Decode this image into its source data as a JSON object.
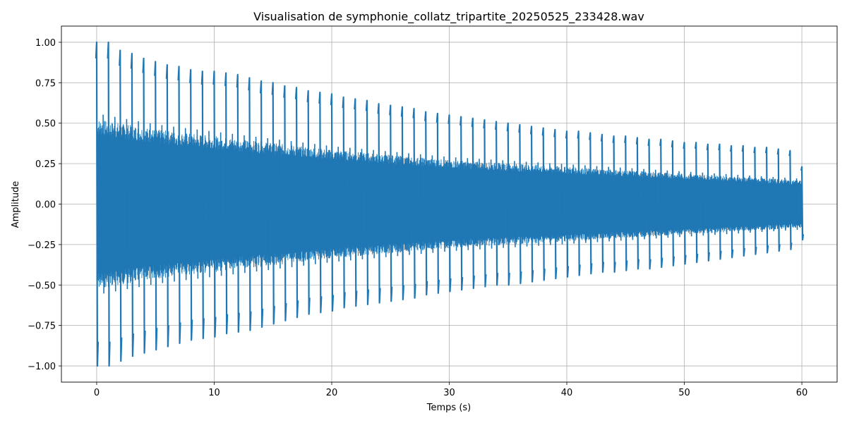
{
  "chart_data": {
    "type": "line",
    "title": "Visualisation de symphonie_collatz_tripartite_20250525_233428.wav",
    "xlabel": "Temps (s)",
    "ylabel": "Amplitude",
    "xlim": [
      -3,
      63
    ],
    "ylim": [
      -1.1,
      1.1
    ],
    "xticks": [
      0,
      10,
      20,
      30,
      40,
      50,
      60
    ],
    "xtick_labels": [
      "0",
      "10",
      "20",
      "30",
      "40",
      "50",
      "60"
    ],
    "yticks": [
      1.0,
      0.75,
      0.5,
      0.25,
      0.0,
      -0.25,
      -0.5,
      -0.75,
      -1.0
    ],
    "ytick_labels": [
      "1.00",
      "0.75",
      "0.50",
      "0.25",
      "0.00",
      "−0.25",
      "−0.50",
      "−0.75",
      "−1.00"
    ],
    "grid": true,
    "color": "#1f77b4",
    "series": [
      {
        "description_duration_s": 60,
        "envelope": {
          "x": [
            0,
            5,
            10,
            15,
            20,
            25,
            30,
            35,
            40,
            45,
            50,
            55,
            60
          ],
          "body": [
            0.5,
            0.44,
            0.4,
            0.36,
            0.32,
            0.29,
            0.26,
            0.24,
            0.22,
            0.2,
            0.18,
            0.16,
            0.14
          ]
        },
        "peaks": {
          "x": [
            0,
            1,
            2,
            3,
            4,
            5,
            6,
            7,
            8,
            9,
            10,
            11,
            12,
            13,
            14,
            15,
            16,
            17,
            18,
            19,
            20,
            21,
            22,
            23,
            24,
            25,
            26,
            27,
            28,
            29,
            30,
            31,
            32,
            33,
            34,
            35,
            36,
            37,
            38,
            39,
            40,
            41,
            42,
            43,
            44,
            45,
            46,
            47,
            48,
            49,
            50,
            51,
            52,
            53,
            54,
            55,
            56,
            57,
            58,
            59,
            60
          ],
          "max": [
            1.0,
            1.0,
            0.95,
            0.93,
            0.9,
            0.88,
            0.86,
            0.85,
            0.83,
            0.82,
            0.82,
            0.81,
            0.8,
            0.78,
            0.76,
            0.75,
            0.73,
            0.72,
            0.7,
            0.69,
            0.68,
            0.66,
            0.65,
            0.64,
            0.62,
            0.61,
            0.6,
            0.59,
            0.57,
            0.56,
            0.55,
            0.54,
            0.53,
            0.52,
            0.51,
            0.5,
            0.49,
            0.48,
            0.47,
            0.46,
            0.45,
            0.45,
            0.44,
            0.43,
            0.42,
            0.42,
            0.41,
            0.4,
            0.4,
            0.39,
            0.38,
            0.38,
            0.37,
            0.37,
            0.36,
            0.36,
            0.35,
            0.35,
            0.34,
            0.33,
            0.23
          ],
          "min": [
            -1.0,
            -1.0,
            -0.97,
            -0.94,
            -0.92,
            -0.9,
            -0.88,
            -0.86,
            -0.84,
            -0.83,
            -0.82,
            -0.8,
            -0.79,
            -0.78,
            -0.76,
            -0.74,
            -0.72,
            -0.7,
            -0.68,
            -0.67,
            -0.66,
            -0.64,
            -0.63,
            -0.62,
            -0.61,
            -0.6,
            -0.59,
            -0.58,
            -0.56,
            -0.55,
            -0.54,
            -0.53,
            -0.52,
            -0.51,
            -0.5,
            -0.5,
            -0.49,
            -0.48,
            -0.47,
            -0.46,
            -0.45,
            -0.44,
            -0.43,
            -0.42,
            -0.42,
            -0.41,
            -0.4,
            -0.4,
            -0.39,
            -0.38,
            -0.37,
            -0.36,
            -0.35,
            -0.34,
            -0.33,
            -0.32,
            -0.31,
            -0.3,
            -0.29,
            -0.28,
            -0.22
          ]
        }
      }
    ]
  }
}
